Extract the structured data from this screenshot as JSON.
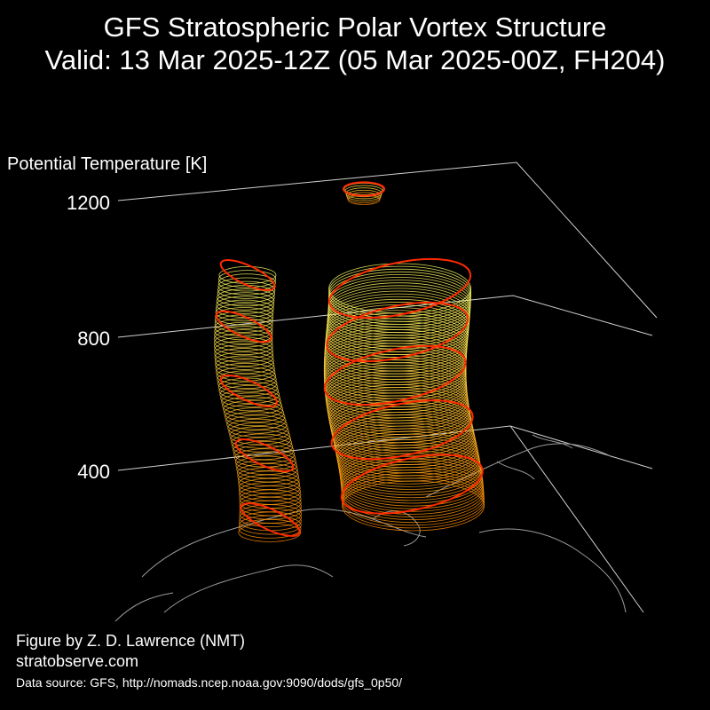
{
  "title_line1": "GFS Stratospheric Polar Vortex Structure",
  "title_line2": "Valid: 13 Mar 2025-12Z  (05 Mar 2025-00Z, FH204)",
  "credit_line1": "Figure by Z. D. Lawrence (NMT)",
  "credit_line2": "stratobserve.com",
  "source": "Data source: GFS, http://nomads.ncep.noaa.gov:9090/dods/gfs_0p50/",
  "colors": {
    "background": "#000000",
    "outline": "#ff2a00",
    "low": "#ff8c00",
    "high": "#ffff66",
    "coast": "#9a9a9a",
    "axis": "#cfcfcf"
  },
  "chart_data": {
    "type": "3d-isosurface",
    "zlabel": "Potential Temperature [K]",
    "z_ticks": [
      "400",
      "800",
      "1200"
    ],
    "z_tick_values": [
      400,
      800,
      1200
    ]
  }
}
